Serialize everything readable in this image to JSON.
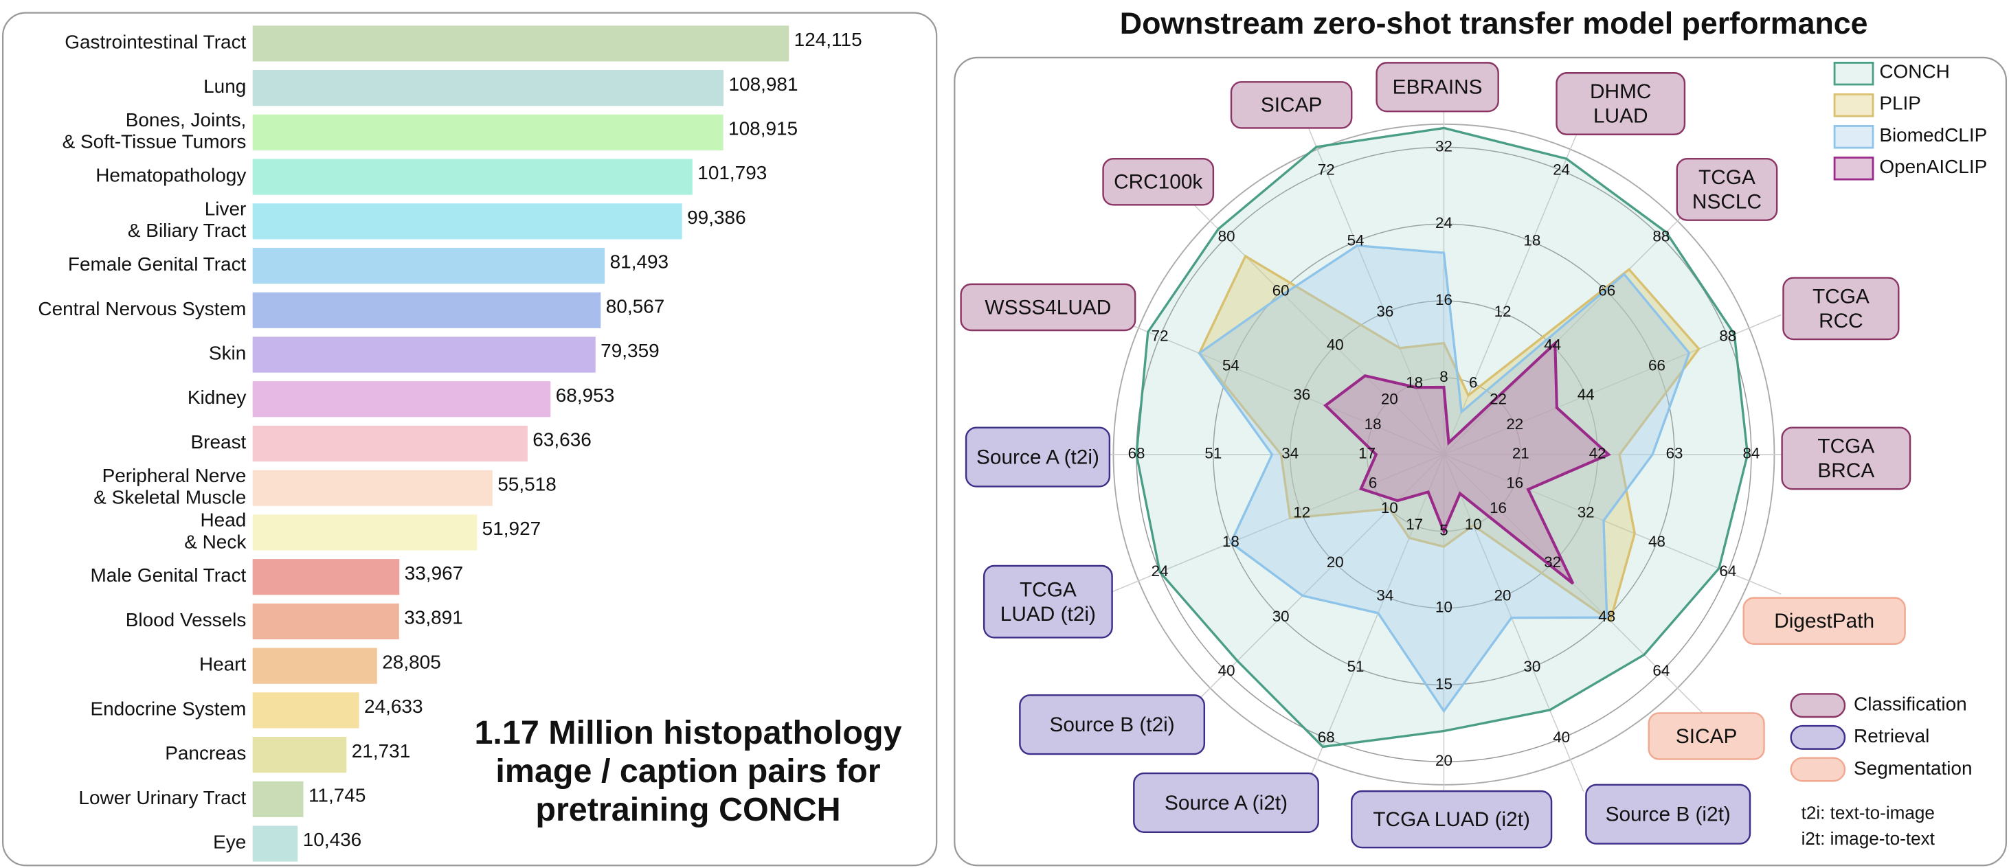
{
  "chart_data": [
    {
      "type": "barh",
      "categories": [
        "Gastrointestinal Tract",
        "Lung",
        "Bones, Joints,\n& Soft-Tissue Tumors",
        "Hematopathology",
        "Liver\n& Biliary Tract",
        "Female Genital Tract",
        "Central Nervous System",
        "Skin",
        "Kidney",
        "Breast",
        "Peripheral Nerve\n& Skeletal Muscle",
        "Head\n& Neck",
        "Male Genital Tract",
        "Blood Vessels",
        "Heart",
        "Endocrine System",
        "Pancreas",
        "Lower Urinary Tract",
        "Eye"
      ],
      "values": [
        124115,
        108981,
        108915,
        101793,
        99386,
        81493,
        80567,
        79359,
        68953,
        63636,
        55518,
        51927,
        33967,
        33891,
        28805,
        24633,
        21731,
        11745,
        10436
      ],
      "value_labels": [
        "124,115",
        "108,981",
        "108,915",
        "101,793",
        "99,386",
        "81,493",
        "80,567",
        "79,359",
        "68,953",
        "63,636",
        "55,518",
        "51,927",
        "33,967",
        "33,891",
        "28,805",
        "24,633",
        "21,731",
        "11,745",
        "10,436"
      ],
      "colors": [
        "#c9dcb8",
        "#bfe0dd",
        "#c6f5b8",
        "#aaf0dc",
        "#a7e8f2",
        "#a8d8f2",
        "#a9bdec",
        "#c5b5ec",
        "#e6b8e4",
        "#f6c8d0",
        "#fbe0cf",
        "#f7f5c8",
        "#eda29b",
        "#f0b39c",
        "#f2c79a",
        "#f6e0a0",
        "#e6e3a8",
        "#c9dcb6",
        "#bfe3df"
      ],
      "xlim": [
        0,
        150000
      ],
      "annotation": [
        "1.17 Million histopathology",
        "image / caption pairs for",
        "pretraining CONCH"
      ]
    },
    {
      "type": "radar",
      "title": "Downstream zero-shot transfer model performance",
      "axes": [
        {
          "label": "EBRAINS",
          "group": 0,
          "ticks": [
            8,
            16,
            24,
            32
          ],
          "lim": [
            0,
            32
          ]
        },
        {
          "label": "DHMC\nLUAD",
          "group": 0,
          "ticks": [
            6,
            12,
            18,
            24
          ],
          "lim": [
            0,
            24
          ]
        },
        {
          "label": "TCGA\nNSCLC",
          "group": 0,
          "ticks": [
            22,
            44,
            66,
            88
          ],
          "lim": [
            0,
            88
          ]
        },
        {
          "label": "TCGA\nRCC",
          "group": 0,
          "ticks": [
            22,
            44,
            66,
            88
          ],
          "lim": [
            0,
            88
          ]
        },
        {
          "label": "TCGA\nBRCA",
          "group": 0,
          "ticks": [
            21,
            42,
            63,
            84
          ],
          "lim": [
            0,
            84
          ]
        },
        {
          "label": "DigestPath",
          "group": 2,
          "ticks": [
            16,
            32,
            48,
            64
          ],
          "lim": [
            0,
            64
          ]
        },
        {
          "label": "SICAP",
          "group": 2,
          "ticks": [
            16,
            32,
            48,
            64
          ],
          "lim": [
            0,
            64
          ]
        },
        {
          "label": "Source B (i2t)",
          "group": 1,
          "ticks": [
            10,
            20,
            30,
            40
          ],
          "lim": [
            0,
            40
          ]
        },
        {
          "label": "TCGA LUAD (i2t)",
          "group": 1,
          "ticks": [
            5,
            10,
            15,
            20
          ],
          "lim": [
            0,
            20
          ]
        },
        {
          "label": "Source A (i2t)",
          "group": 1,
          "ticks": [
            17,
            34,
            51,
            68
          ],
          "lim": [
            0,
            68
          ]
        },
        {
          "label": "Source B (t2i)",
          "group": 1,
          "ticks": [
            10,
            20,
            30,
            40
          ],
          "lim": [
            0,
            40
          ]
        },
        {
          "label": "TCGA\nLUAD (t2i)",
          "group": 1,
          "ticks": [
            6,
            12,
            18,
            24
          ],
          "lim": [
            0,
            24
          ]
        },
        {
          "label": "Source A (t2i)",
          "group": 1,
          "ticks": [
            17,
            34,
            51,
            68
          ],
          "lim": [
            0,
            68
          ]
        },
        {
          "label": "WSSS4LUAD",
          "group": 0,
          "ticks": [
            18,
            36,
            54,
            72
          ],
          "lim": [
            0,
            72
          ]
        },
        {
          "label": "CRC100k",
          "group": 0,
          "ticks": [
            20,
            40,
            60,
            80
          ],
          "lim": [
            0,
            80
          ]
        },
        {
          "label": "SICAP",
          "group": 0,
          "ticks": [
            18,
            36,
            54,
            72
          ],
          "lim": [
            0,
            72
          ]
        }
      ],
      "groups": [
        {
          "name": "Classification",
          "fill": "#dcc3d4",
          "stroke": "#8b3565"
        },
        {
          "name": "Retrieval",
          "fill": "#cbc6e6",
          "stroke": "#3b2f8a"
        },
        {
          "name": "Segmentation",
          "fill": "#f9d3c6",
          "stroke": "#f0a890"
        }
      ],
      "series": [
        {
          "name": "CONCH",
          "color": "#4a9e86",
          "fill": "rgba(150,205,190,0.22)",
          "values": [
            34,
            25,
            90,
            90,
            83,
            62,
            59,
            36,
            18,
            70,
            38,
            24,
            68,
            75,
            83,
            78
          ]
        },
        {
          "name": "PLIP",
          "color": "#d8c070",
          "fill": "rgba(220,205,120,0.38)",
          "values": [
            11.6,
            5,
            75,
            79,
            48,
            43,
            49,
            10,
            6,
            20,
            10,
            13,
            36,
            62,
            73,
            27
          ]
        },
        {
          "name": "BiomedCLIP",
          "color": "#8ec4ea",
          "fill": "rgba(160,200,235,0.35)",
          "values": [
            21,
            3.6,
            73,
            76,
            57,
            36,
            48,
            23,
            16.7,
            38,
            26,
            18,
            38,
            62,
            59,
            53
          ]
        },
        {
          "name": "OpenAICLIP",
          "color": "#9a2a8a",
          "fill": "rgba(190,130,175,0.45)",
          "values": [
            7,
            1,
            45,
            35,
            45,
            19,
            38,
            5.5,
            5,
            9,
            8.5,
            7,
            15,
            30,
            29,
            17
          ]
        }
      ],
      "notes": [
        "t2i: text-to-image",
        "i2t: image-to-text"
      ]
    }
  ]
}
